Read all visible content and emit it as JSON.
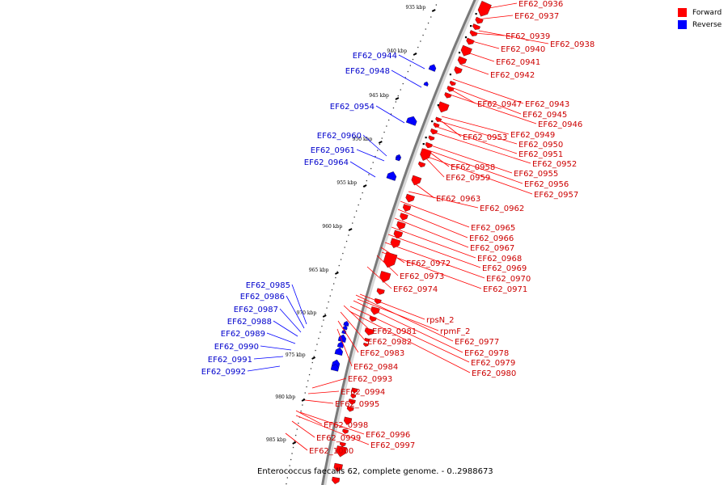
{
  "legend": {
    "forward_label": "Forward",
    "reverse_label": "Reverse",
    "forward_color": "#ff0000",
    "reverse_color": "#0000ff"
  },
  "caption": "Enterococcus faecalis 62, complete genome. - 0..2988673",
  "colors": {
    "forward": "#ff0000",
    "reverse": "#0000ff",
    "backbone": "#7a7a7a",
    "tick": "#000000"
  },
  "scale": {
    "tick_labels": [
      "935 kbp",
      "940 kbp",
      "945 kbp",
      "950 kbp",
      "955 kbp",
      "960 kbp",
      "965 kbp",
      "970 kbp",
      "975 kbp",
      "980 kbp",
      "985 kbp"
    ]
  },
  "forward_genes": [
    "EF62_0936",
    "EF62_0937",
    "EF62_0939",
    "EF62_0938",
    "EF62_0940",
    "EF62_0941",
    "EF62_0942",
    "EF62_0947",
    "EF62_0943",
    "EF62_0945",
    "EF62_0946",
    "EF62_0953",
    "EF62_0949",
    "EF62_0950",
    "EF62_0951",
    "EF62_0952",
    "EF62_0958",
    "EF62_0955",
    "EF62_0959",
    "EF62_0956",
    "EF62_0957",
    "EF62_0963",
    "EF62_0962",
    "EF62_0965",
    "EF62_0966",
    "EF62_0967",
    "EF62_0968",
    "EF62_0972",
    "EF62_0969",
    "EF62_0973",
    "EF62_0970",
    "EF62_0974",
    "EF62_0971",
    "rpsN_2",
    "rpmF_2",
    "EF62_0981",
    "EF62_0977",
    "EF62_0982",
    "EF62_0978",
    "EF62_0983",
    "EF62_0979",
    "EF62_0980",
    "EF62_0984",
    "EF62_0993",
    "EF62_0994",
    "EF62_0995",
    "EF62_0998",
    "EF62_0996",
    "EF62_0999",
    "EF62_0997",
    "EF62_1000"
  ],
  "reverse_genes": [
    "EF62_0944",
    "EF62_0948",
    "EF62_0954",
    "EF62_0960",
    "EF62_0961",
    "EF62_0964",
    "EF62_0985",
    "EF62_0986",
    "EF62_0987",
    "EF62_0988",
    "EF62_0989",
    "EF62_0990",
    "EF62_0991",
    "EF62_0992"
  ]
}
